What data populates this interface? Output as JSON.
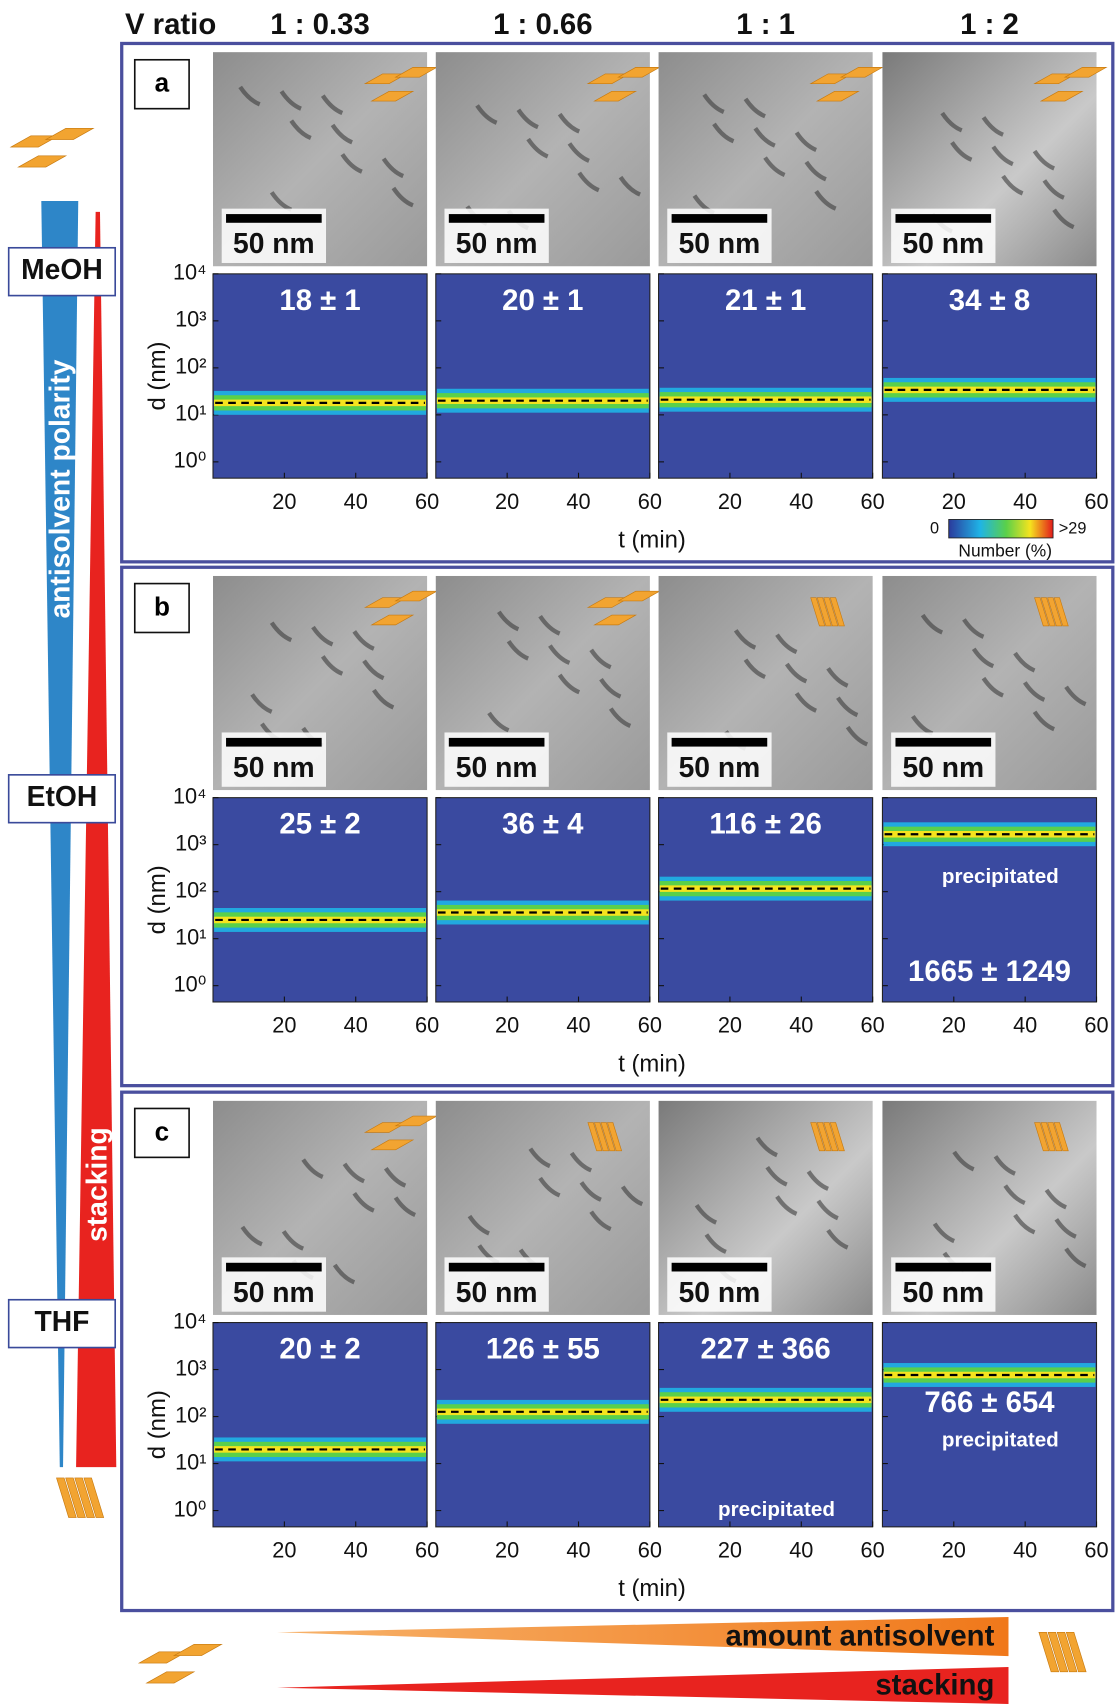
{
  "header": {
    "label": "V ratio",
    "ratios": [
      "1 : 0.33",
      "1 : 0.66",
      "1 : 1",
      "1 : 2"
    ]
  },
  "axes": {
    "ylabel": "d (nm)",
    "xlabel": "t (min)",
    "ylog": true,
    "ylim": [
      0.45,
      10000
    ],
    "yticks": [
      {
        "value": 1,
        "label": "10⁰"
      },
      {
        "value": 10,
        "label": "10¹"
      },
      {
        "value": 100,
        "label": "10²"
      },
      {
        "value": 1000,
        "label": "10³"
      },
      {
        "value": 10000,
        "label": "10⁴"
      }
    ],
    "xlim": [
      0,
      60
    ],
    "xticks": [
      20,
      40,
      60
    ]
  },
  "panels": [
    {
      "letter": "a",
      "solvent": "MeOH",
      "cells": [
        {
          "scale_bar": "50 nm",
          "stacked": false,
          "mean": 18,
          "label": "18 ± 1"
        },
        {
          "scale_bar": "50 nm",
          "stacked": false,
          "mean": 20,
          "label": "20 ± 1"
        },
        {
          "scale_bar": "50 nm",
          "stacked": false,
          "mean": 21,
          "label": "21 ± 1"
        },
        {
          "scale_bar": "50 nm",
          "stacked": false,
          "mean": 34,
          "label": "34 ± 8"
        }
      ]
    },
    {
      "letter": "b",
      "solvent": "EtOH",
      "cells": [
        {
          "scale_bar": "50 nm",
          "stacked": false,
          "mean": 25,
          "label": "25 ± 2"
        },
        {
          "scale_bar": "50 nm",
          "stacked": false,
          "mean": 36,
          "label": "36 ± 4"
        },
        {
          "scale_bar": "50 nm",
          "stacked": true,
          "mean": 116,
          "label": "116 ± 26"
        },
        {
          "scale_bar": "50 nm",
          "stacked": true,
          "mean": 1665,
          "label": "1665 ± 1249",
          "note": "precipitated"
        }
      ]
    },
    {
      "letter": "c",
      "solvent": "THF",
      "cells": [
        {
          "scale_bar": "50 nm",
          "stacked": false,
          "mean": 20,
          "label": "20 ± 2"
        },
        {
          "scale_bar": "50 nm",
          "stacked": true,
          "mean": 126,
          "label": "126 ± 55"
        },
        {
          "scale_bar": "50 nm",
          "stacked": true,
          "mean": 227,
          "label": "227 ± 366",
          "note": "precipitated"
        },
        {
          "scale_bar": "50 nm",
          "stacked": true,
          "mean": 766,
          "label": "766 ± 654",
          "note": "precipitated"
        }
      ]
    }
  ],
  "colorbar": {
    "min": 0,
    "max": ">29",
    "label": "Number (%)"
  },
  "left": {
    "polarity": "antisolvent polarity",
    "stacking": "stacking"
  },
  "bottom": {
    "amount": "amount antisolvent",
    "stacking": "stacking"
  }
}
